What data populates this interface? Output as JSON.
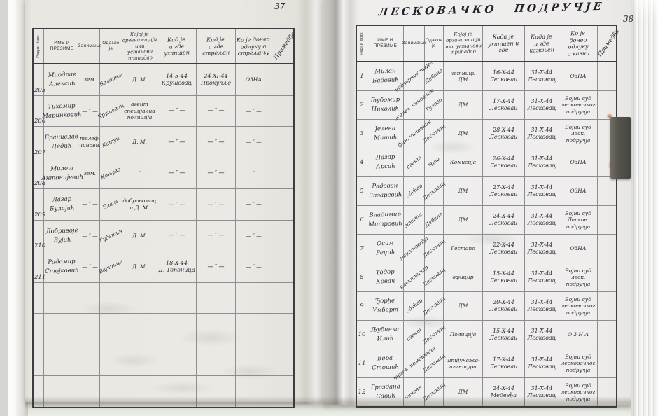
{
  "document": {
    "title": "ЛЕСКОВАЧКО  ПОДРУЧЈЕ",
    "left_page_number": "37",
    "right_page_number": "38",
    "ink_color": "#2c2c38",
    "paper_color": "#eae8e3"
  },
  "left_page": {
    "headers": {
      "row_no": "Редни број",
      "name": "ИМЕ И ПРЕЗИМЕ",
      "occupation": "Занимање",
      "origin": "Одакле је",
      "organization": "Којој је\nорганизацији\nили установи\nприпадао",
      "arrested": "Кад је\nи где\nухапшен",
      "executed": "Кад је\nи где\nстрељан",
      "decision": "Ко је донео\nодлуку о\nстрељању",
      "remark": "Примедба"
    },
    "rows": [
      {
        "no": "205",
        "name": "Миодраг\nАлексић",
        "occupation": "зем.",
        "origin": "Белоиње",
        "organization": "Д. М.",
        "arrested": "14-5-44\nКрушевац",
        "executed": "24-XI-44\nПрокупље",
        "decision": "ОЗНА",
        "remark": ""
      },
      {
        "no": "206",
        "name": "Тихомир\nМаринковић",
        "occupation": "— ″ —",
        "origin": "Крушевац",
        "organization": "агент\nспецијална\nполиција",
        "arrested": "— ″ —",
        "executed": "— ″ —",
        "decision": "— ″ —",
        "remark": ""
      },
      {
        "no": "207",
        "name": "Бранислав\nДедић",
        "occupation": "телеф.\nчиновн.",
        "origin": "Катун",
        "organization": "Д. М.",
        "arrested": "— ″ —",
        "executed": "— ″ —",
        "decision": "— ″ —",
        "remark": ""
      },
      {
        "no": "208",
        "name": "Милош\nАнтонијевић",
        "occupation": "зем.",
        "origin": "Коњуво",
        "organization": "— ″ —",
        "arrested": "— ″ —",
        "executed": "— ″ —",
        "decision": "— ″ —",
        "remark": ""
      },
      {
        "no": "209",
        "name": "Лазар\nБулајић",
        "occupation": "— ″ —",
        "origin": "Блаце",
        "organization": "добровољац\nи Д. М.",
        "arrested": "— ″ —",
        "executed": "— ″ —",
        "decision": "— ″ —",
        "remark": ""
      },
      {
        "no": "210",
        "name": "Добривоје\nВујић",
        "occupation": "— ″ —",
        "origin": "Губетин",
        "organization": "Д. М.",
        "arrested": "— ″ —",
        "executed": "— ″ —",
        "decision": "— ″ —",
        "remark": ""
      },
      {
        "no": "211",
        "name": "Радомир\nСтојковић",
        "occupation": "— ″ —",
        "origin": "Бајчинце",
        "organization": "Д. М.",
        "arrested": "18-X-44\nД. Топоница",
        "executed": "— ″ —",
        "decision": "— ″ —",
        "remark": ""
      }
    ],
    "empty_row_count": 4
  },
  "right_page": {
    "headers": {
      "row_no": "Редни број",
      "name": "ИМЕ И ПРЕЗИМЕ",
      "occupation": "Занимање",
      "origin": "Одакле је",
      "organization": "Којој је\nорганизацији\nили установи\nприпадао",
      "arrested": "Када је\nухапшен и\nгде",
      "executed": "Када је\nи где\nкажњен",
      "decision": "Ко је\nдонео одлуку\nо казни",
      "remark": "Примедба"
    },
    "rows": [
      {
        "no": "1",
        "name": "Милан\nБабовић",
        "occupation": "надзорник\nпруге",
        "origin": "Лебане",
        "organization": "четници\nДМ",
        "arrested": "16-X-44\nЛесковац",
        "executed": "31-X-44\nЛесковац",
        "decision": "ОЗНА",
        "remark": ""
      },
      {
        "no": "2",
        "name": "Љубомир\nНиколић",
        "occupation": "желез.\nчиновник",
        "origin": "Тулово",
        "organization": "ДМ",
        "arrested": "17-X-44\nЛесковац",
        "executed": "31-X-44\nЛесковац",
        "decision": "Војни суд\nлесковачког\nподручја",
        "remark": ""
      },
      {
        "no": "3",
        "name": "Јелена\nМитић",
        "occupation": "фин.\nчиновник",
        "origin": "Лесковац",
        "organization": "ДМ",
        "arrested": "28-X-44\nЛесковац",
        "executed": "31-X-44\nЛесковац",
        "decision": "Војни суд\nлеск.\nподручја",
        "remark": ""
      },
      {
        "no": "4",
        "name": "Лазар\nАрсић",
        "occupation": "агент",
        "origin": "Ниш",
        "organization": "Комисија",
        "arrested": "26-X-44\nЛесковац",
        "executed": "31-X-44\nЛесковац",
        "decision": "ОЗНА",
        "remark": ""
      },
      {
        "no": "5",
        "name": "Радован\nЛазаревић",
        "occupation": "обућар",
        "origin": "Лесковац",
        "organization": "ДМ",
        "arrested": "27-X-44\nЛесковац",
        "executed": "31-X-44\nЛесковац",
        "decision": "ОЗНА",
        "remark": ""
      },
      {
        "no": "6",
        "name": "Владимир\nМитровић",
        "occupation": "занатл.",
        "origin": "Лебане",
        "organization": "ДМ",
        "arrested": "24-X-44\nЛесковац",
        "executed": "31-X-44\nЛесковац",
        "decision": "Војни суд\nЛесков.\nподручја",
        "remark": ""
      },
      {
        "no": "7",
        "name": "Осим\nРеџић",
        "occupation": "машиновођа",
        "origin": "Лесковац",
        "organization": "Гестапо",
        "arrested": "22-X-44\nЛесковац",
        "executed": "31-X-44\nЛесковац",
        "decision": "ОЗНА",
        "remark": ""
      },
      {
        "no": "8",
        "name": "Тодор\nКовач",
        "occupation": "електричар",
        "origin": "Лесковац",
        "organization": "официр",
        "arrested": "15-X-44\nЛесковац",
        "executed": "31-X-44\nЛесковац",
        "decision": "Војни суд\nлеск. подручја",
        "remark": ""
      },
      {
        "no": "9",
        "name": "Ђорђе\nУмберт",
        "occupation": "обућар",
        "origin": "Лесковац",
        "organization": "ДМ",
        "arrested": "20-X-44\nЛесковац",
        "executed": "31-X-44\nЛесковац",
        "decision": "Војни суд\nлесковачког\nподручја",
        "remark": ""
      },
      {
        "no": "10",
        "name": "Љубинка\nИлић",
        "occupation": "агент",
        "origin": "Лесковац",
        "organization": "Полиција",
        "arrested": "15-X-44\nЛесковац",
        "executed": "31-X-44\nЛесковац",
        "decision": "О З Н А",
        "remark": ""
      },
      {
        "no": "11",
        "name": "Вера\nСтошић",
        "occupation": "тргов.\nпомоћница",
        "origin": "Лесковац",
        "organization": "шпијунажа-\nагентура",
        "arrested": "17-X-44\nЛесковац",
        "executed": "31-X-44\nЛесковац",
        "decision": "Војни суд\nлесковачког\nподручја",
        "remark": ""
      },
      {
        "no": "12",
        "name": "Гроздана\nСавић",
        "occupation": "чиновн.",
        "origin": "Лесковац",
        "organization": "ДМ",
        "arrested": "24-X-44\nМедвеђа",
        "executed": "31-X-44\nЛесковац",
        "decision": "Војни суд\nлесковачког\nподручја",
        "remark": ""
      }
    ],
    "empty_row_count": 0
  }
}
